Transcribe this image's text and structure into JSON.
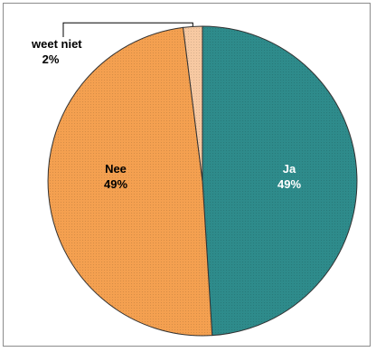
{
  "chart_data": {
    "type": "pie",
    "title": "",
    "slices": [
      {
        "name": "Ja",
        "value": 49,
        "label": "Ja",
        "pct_label": "49%",
        "color": "#2e8b8b",
        "label_color": "#ffffff"
      },
      {
        "name": "Nee",
        "value": 49,
        "label": "Nee",
        "pct_label": "49%",
        "color": "#f4a050",
        "label_color": "#000000"
      },
      {
        "name": "weet niet",
        "value": 2,
        "label": "weet niet",
        "pct_label": "2%",
        "color": "#f7c9a2",
        "label_color": "#000000"
      }
    ],
    "start": "12 o'clock",
    "direction": "clockwise",
    "legend": "none",
    "grid": false
  }
}
